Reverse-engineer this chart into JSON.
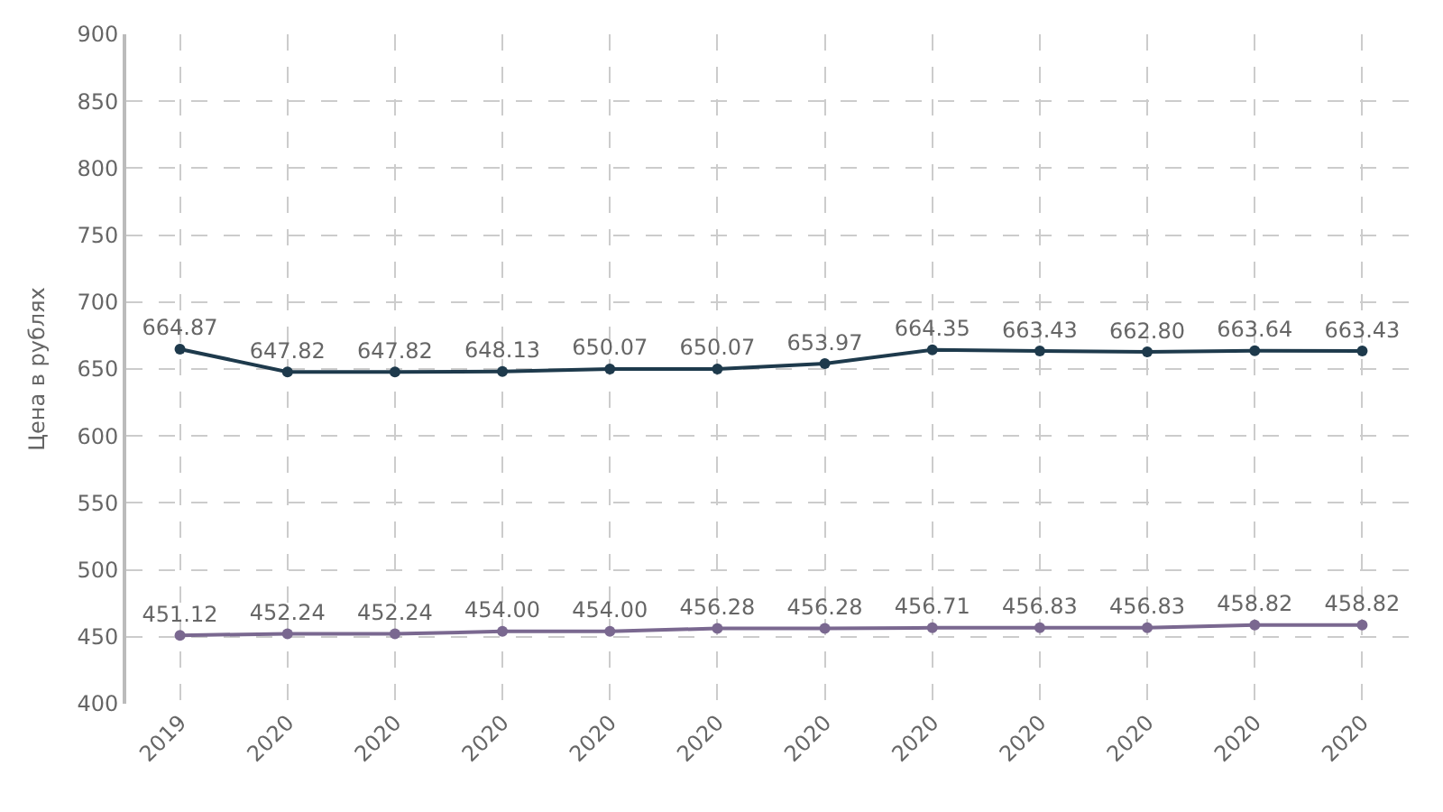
{
  "chart_data": {
    "type": "line",
    "ylabel": "Цена в рублях",
    "categories": [
      "2019",
      "2020",
      "2020",
      "2020",
      "2020",
      "2020",
      "2020",
      "2020",
      "2020",
      "2020",
      "2020",
      "2020"
    ],
    "series": [
      {
        "color": "#1e3a4c",
        "values": [
          664.87,
          647.82,
          647.82,
          648.13,
          650.07,
          650.07,
          653.97,
          664.35,
          663.43,
          662.8,
          663.64,
          663.43
        ]
      },
      {
        "color": "#7a6890",
        "values": [
          451.12,
          452.24,
          452.24,
          454.0,
          454.0,
          456.28,
          456.28,
          456.71,
          456.83,
          456.83,
          458.82,
          458.82
        ]
      }
    ],
    "value_labels": [
      [
        "664.87",
        "647.82",
        "647.82",
        "648.13",
        "650.07",
        "650.07",
        "653.97",
        "664.35",
        "663.43",
        "662.80",
        "663.64",
        "663.43"
      ],
      [
        "451.12",
        "452.24",
        "452.24",
        "454.00",
        "454.00",
        "456.28",
        "456.28",
        "456.71",
        "456.83",
        "456.83",
        "458.82",
        "458.82"
      ]
    ],
    "ylim": [
      400,
      900
    ],
    "yticks": [
      400,
      450,
      500,
      550,
      600,
      650,
      700,
      750,
      800,
      850,
      900
    ],
    "grid": true,
    "marker": "circle",
    "line_style": "solid"
  }
}
